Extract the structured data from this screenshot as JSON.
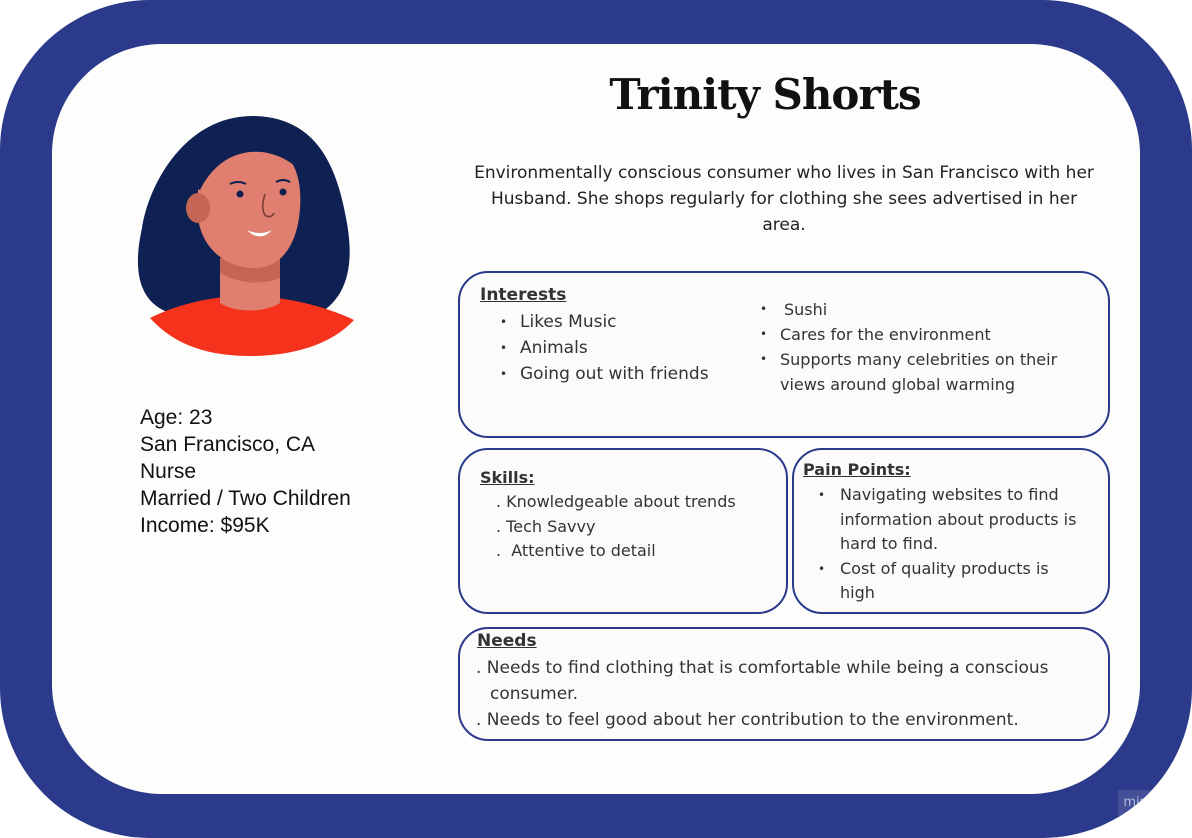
{
  "persona": {
    "name": "Trinity Shorts",
    "summary": "Environmentally conscious consumer who lives in San Francisco with her Husband. She shops regularly for clothing she sees advertised in her area.",
    "facts": {
      "age": "Age: 23",
      "location": "San Francisco, CA",
      "occupation": "Nurse",
      "family": "Married / Two Children",
      "income": "Income: $95K"
    }
  },
  "interests": {
    "heading": "Interests",
    "left": [
      "Likes Music",
      "Animals",
      "Going out with friends"
    ],
    "right": [
      "Sushi",
      "Cares for the environment",
      "Supports many celebrities on their views around global warming"
    ]
  },
  "skills": {
    "heading": "Skills:",
    "items": [
      ". Knowledgeable about trends",
      ". Tech Savvy",
      ".  Attentive to detail"
    ]
  },
  "pain_points": {
    "heading": "Pain Points:",
    "items": [
      "Navigating websites to find information about products is hard to find.",
      "Cost of quality products is high"
    ]
  },
  "needs": {
    "heading": "Needs",
    "item1_line1": ". Needs to find clothing that is comfortable while being a conscious",
    "item1_line2": "consumer.",
    "item2": ". Needs to feel good about her contribution to the environment."
  },
  "watermark": "miro",
  "colors": {
    "frame": "#2b3a8b",
    "card": "#fdfdfc",
    "hair": "#0e2152",
    "skin": "#e07f6f",
    "shirt": "#f5321c"
  },
  "icons": {
    "avatar": "woman-avatar-illustration"
  }
}
